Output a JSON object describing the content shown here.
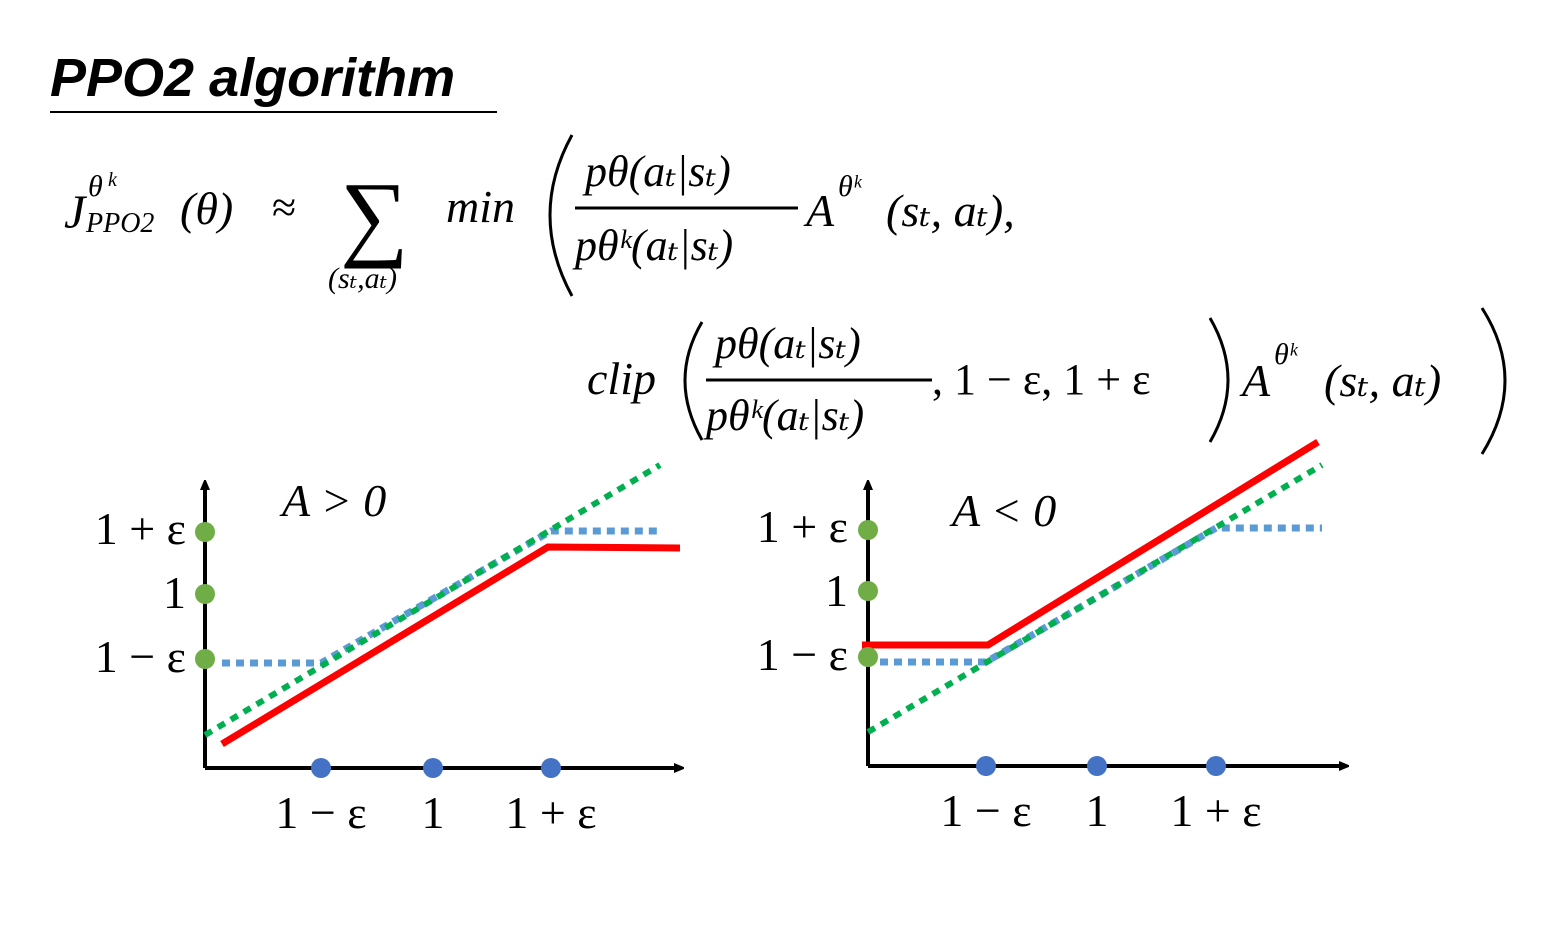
{
  "title": "PPO2 algorithm",
  "equation": {
    "lhs_J": "J",
    "lhs_sup": "θ",
    "lhs_sup_k": "k",
    "lhs_sub": "PPO2",
    "lhs_arg": "(θ)",
    "approx": "≈",
    "sum": "∑",
    "sum_sub": "(sₜ,aₜ)",
    "min": "min",
    "ratio_num": "pθ(aₜ|sₜ)",
    "ratio_den": "pθᵏ(aₜ|sₜ)",
    "advantage": "A",
    "advantage_sup": "θᵏ",
    "advantage_args": "(sₜ, aₜ),",
    "clip": "clip",
    "clip_bounds": ", 1 − ε, 1 + ε",
    "advantage_args_2": "(sₜ, aₜ)"
  },
  "colors": {
    "clipped_objective": "#ff0000",
    "unclipped_ratio": "#00b050",
    "clipped_ratio": "#5b9bd5",
    "y_markers": "#70ad47",
    "x_markers": "#4472c4"
  },
  "plots": [
    {
      "label": "A > 0",
      "y_ticks": [
        "1 + ε",
        "1",
        "1 − ε"
      ],
      "x_ticks": [
        "1 − ε",
        "1",
        "1 + ε"
      ]
    },
    {
      "label": "A < 0",
      "y_ticks": [
        "1 + ε",
        "1",
        "1 − ε"
      ],
      "x_ticks": [
        "1 − ε",
        "1",
        "1 + ε"
      ]
    }
  ]
}
